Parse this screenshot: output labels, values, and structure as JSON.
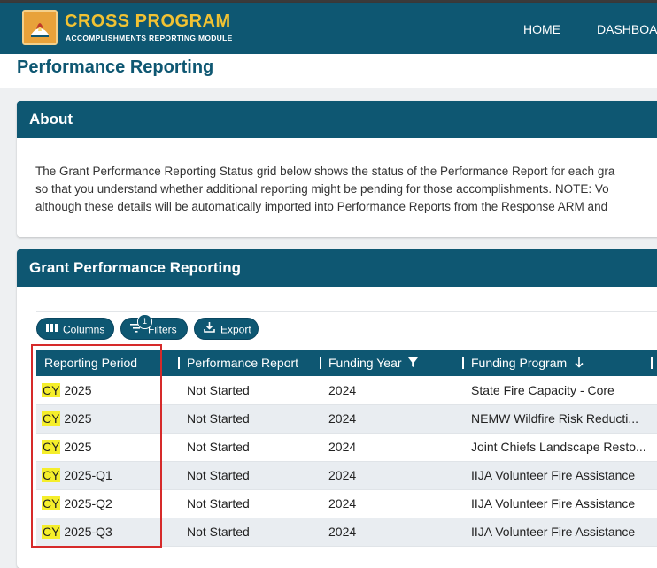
{
  "app": {
    "title": "CROSS PROGRAM",
    "subtitle": "ACCOMPLISHMENTS REPORTING MODULE",
    "logo_icon": "program-logo-icon",
    "nav": [
      {
        "label": "HOME"
      },
      {
        "label": "DASHBOA"
      }
    ]
  },
  "page": {
    "title": "Performance Reporting"
  },
  "about": {
    "title": "About",
    "lines": [
      "The Grant Performance Reporting Status grid below shows the status of the Performance Report for each gra",
      "so that you understand whether additional reporting might be pending for those accomplishments. NOTE: Vo",
      "although these details will be automatically imported into Performance Reports from the Response ARM and"
    ]
  },
  "grant": {
    "title": "Grant Performance Reporting",
    "toolbar": {
      "columns_label": "Columns",
      "filters_label": "Filters",
      "filters_count": "1",
      "export_label": "Export"
    },
    "columns": [
      {
        "label": "Reporting Period"
      },
      {
        "label": "Performance Report"
      },
      {
        "label": "Funding Year",
        "icon": "filter-icon"
      },
      {
        "label": "Funding Program",
        "icon": "sort-down-arrow-icon"
      }
    ],
    "rows": [
      {
        "period_prefix": "CY",
        "period_rest": " 2025",
        "report": "Not Started",
        "year": "2024",
        "program": "State Fire Capacity - Core"
      },
      {
        "period_prefix": "CY",
        "period_rest": " 2025",
        "report": "Not Started",
        "year": "2024",
        "program": "NEMW Wildfire Risk Reducti..."
      },
      {
        "period_prefix": "CY",
        "period_rest": " 2025",
        "report": "Not Started",
        "year": "2024",
        "program": "Joint Chiefs Landscape Resto..."
      },
      {
        "period_prefix": "CY",
        "period_rest": " 2025-Q1",
        "report": "Not Started",
        "year": "2024",
        "program": "IIJA Volunteer Fire Assistance"
      },
      {
        "period_prefix": "CY",
        "period_rest": " 2025-Q2",
        "report": "Not Started",
        "year": "2024",
        "program": "IIJA Volunteer Fire Assistance"
      },
      {
        "period_prefix": "CY",
        "period_rest": " 2025-Q3",
        "report": "Not Started",
        "year": "2024",
        "program": "IIJA Volunteer Fire Assistance"
      }
    ]
  },
  "colors": {
    "primary": "#0e5772",
    "brand_gold": "#f1c233",
    "highlight": "#f5ee2b",
    "annotation_red": "#d62a2a"
  }
}
